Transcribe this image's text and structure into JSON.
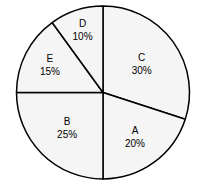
{
  "chart_data": {
    "type": "pie",
    "categories": [
      "C",
      "A",
      "B",
      "E",
      "D"
    ],
    "values": [
      30,
      20,
      25,
      15,
      10
    ],
    "value_labels": [
      "30%",
      "20%",
      "25%",
      "15%",
      "10%"
    ],
    "data_labels": true,
    "colors": [
      "#f5f5f5",
      "#f5f5f5",
      "#f5f5f5",
      "#f5f5f5",
      "#f5f5f5"
    ]
  }
}
